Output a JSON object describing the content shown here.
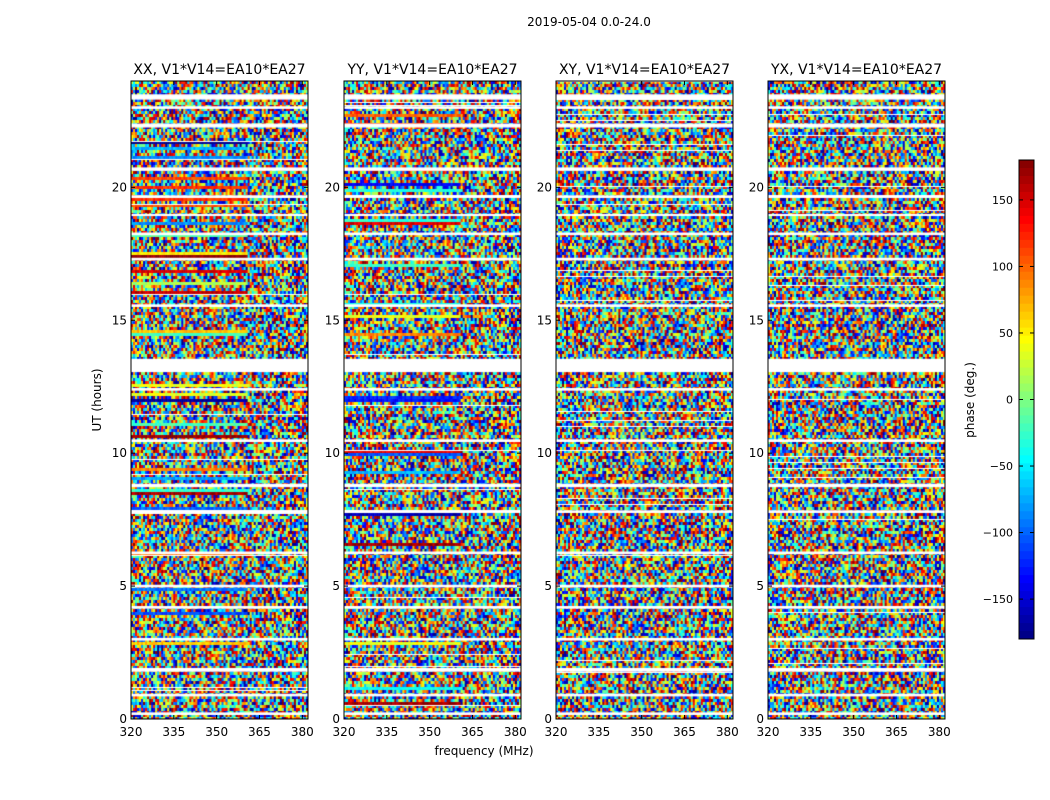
{
  "figure": {
    "suptitle": "2019-05-04 0.0-24.0",
    "xlabel": "frequency (MHz)",
    "ylabel": "UT (hours)",
    "colorbar_label": "phase (deg.)"
  },
  "chart_data": {
    "type": "heatmap",
    "panels": [
      {
        "title": "XX, V1*V14=EA10*EA27"
      },
      {
        "title": "YY, V1*V14=EA10*EA27"
      },
      {
        "title": "XY, V1*V14=EA10*EA27"
      },
      {
        "title": "YX, V1*V14=EA10*EA27"
      }
    ],
    "xlim": [
      320,
      382
    ],
    "ylim": [
      0,
      24
    ],
    "x_ticks": [
      "320",
      "335",
      "350",
      "365",
      "380"
    ],
    "x_tick_values": [
      320,
      335,
      350,
      365,
      380
    ],
    "y_ticks": [
      "0",
      "5",
      "10",
      "15",
      "20"
    ],
    "y_tick_values": [
      0,
      5,
      10,
      15,
      20
    ],
    "colorbar": {
      "range": [
        -180,
        180
      ],
      "ticks": [
        "150",
        "100",
        "50",
        "0",
        "−50",
        "−100",
        "−150"
      ],
      "tick_values": [
        150,
        100,
        50,
        0,
        -50,
        -100,
        -150
      ],
      "colormap": "jet"
    },
    "data_gaps_ut_hours": [
      [
        0.15,
        0.25
      ],
      [
        0.85,
        0.95
      ],
      [
        1.78,
        1.92
      ],
      [
        2.95,
        3.05
      ],
      [
        4.15,
        4.25
      ],
      [
        4.95,
        5.05
      ],
      [
        6.2,
        6.3
      ],
      [
        7.75,
        7.85
      ],
      [
        8.72,
        8.85
      ],
      [
        10.42,
        10.52
      ],
      [
        12.35,
        12.45
      ],
      [
        13.05,
        13.55
      ],
      [
        15.5,
        15.6
      ],
      [
        17.25,
        17.35
      ],
      [
        18.2,
        18.3
      ],
      [
        18.92,
        19.0
      ],
      [
        19.6,
        19.7
      ],
      [
        20.62,
        20.75
      ],
      [
        22.25,
        22.4
      ],
      [
        22.95,
        23.05
      ],
      [
        23.3,
        23.5
      ]
    ]
  }
}
